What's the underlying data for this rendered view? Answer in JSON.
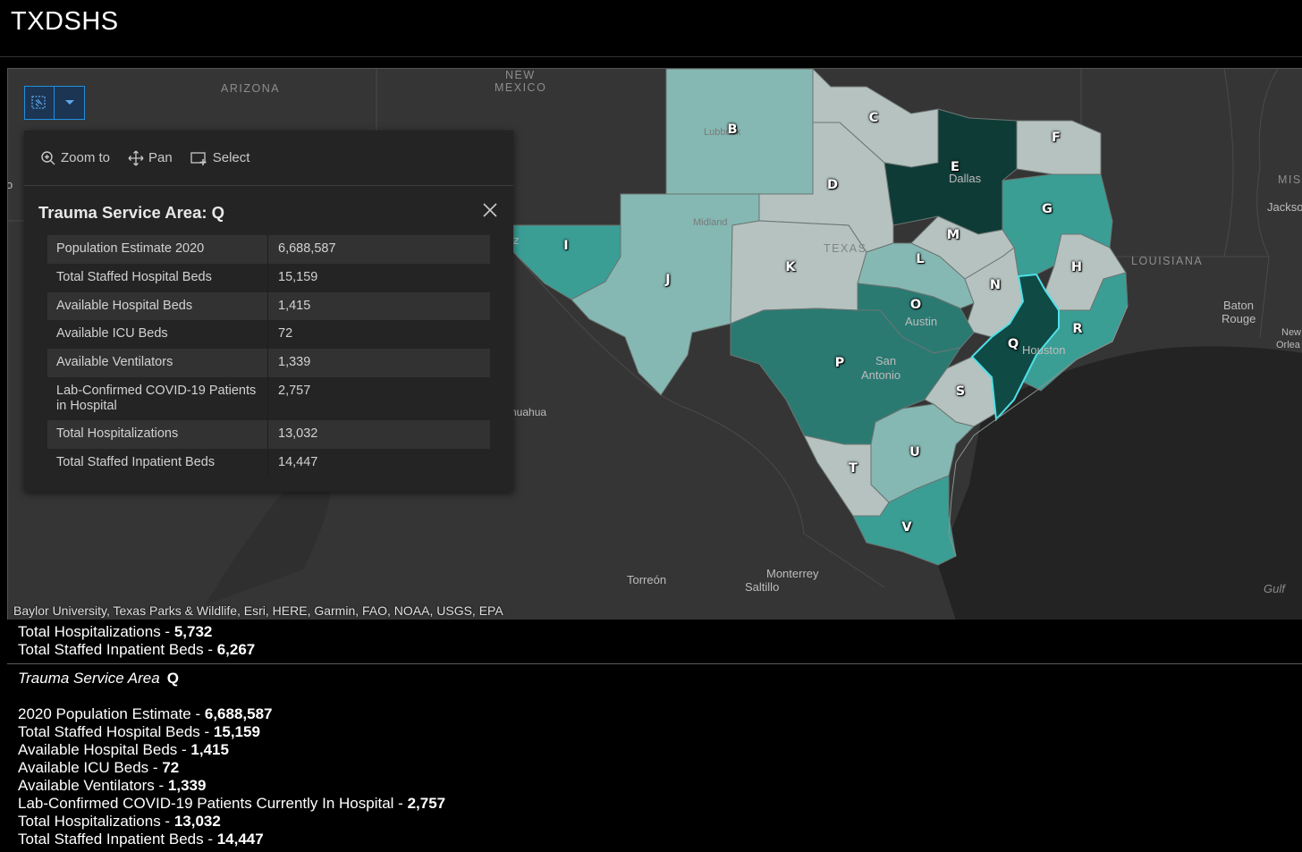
{
  "app": {
    "title": "TXDSHS"
  },
  "map": {
    "region_labels": {
      "arizona": "ARIZONA",
      "new_mexico_1": "NEW",
      "new_mexico_2": "MEXICO",
      "louisiana": "LOUISIANA",
      "texas": "TEXAS",
      "miss": "MISS"
    },
    "cities": {
      "lubbock": "Lubbock",
      "midland": "Midland",
      "dallas": "Dallas",
      "austin": "Austin",
      "san_antonio_1": "San",
      "san_antonio_2": "Antonio",
      "houston": "Houston",
      "baton_rouge_1": "Baton",
      "baton_rouge_2": "Rouge",
      "jackson": "Jackso",
      "new_orleans_1": "New",
      "new_orleans_2": "Orlea",
      "chihuahua": "nuahua",
      "torreon": "Torreón",
      "monterrey": "Monterrey",
      "saltillo": "Saltillo",
      "gulf": "Gulf",
      "edge_o": "o",
      "edge_z": "z"
    },
    "tsa_letters": [
      "B",
      "C",
      "D",
      "E",
      "F",
      "G",
      "H",
      "I",
      "J",
      "K",
      "L",
      "M",
      "N",
      "O",
      "P",
      "Q",
      "R",
      "S",
      "T",
      "U",
      "V"
    ],
    "colors": {
      "lightest": "#b5c2bf",
      "light": "#85b8b3",
      "medium": "#3a9e95",
      "dark": "#2a7a72",
      "darkest": "#0f3b36",
      "selected_outline": "#4fe0e8"
    },
    "attribution": "Baylor University, Texas Parks & Wildlife, Esri, HERE, Garmin, FAO, NOAA, USGS, EPA"
  },
  "toolbar": {
    "select_tool_icon": "select-tool-icon",
    "dropdown_icon": "chevron-down-icon"
  },
  "popup": {
    "actions": [
      {
        "label": "Zoom to",
        "icon": "zoom-in-icon"
      },
      {
        "label": "Pan",
        "icon": "pan-icon"
      },
      {
        "label": "Select",
        "icon": "select-icon"
      }
    ],
    "title": "Trauma Service Area: Q",
    "rows": [
      {
        "key": "Population Estimate 2020",
        "value": "6,688,587"
      },
      {
        "key": "Total Staffed Hospital Beds",
        "value": "15,159"
      },
      {
        "key": "Available Hospital Beds",
        "value": "1,415"
      },
      {
        "key": "Available ICU Beds",
        "value": "72"
      },
      {
        "key": "Available Ventilators",
        "value": "1,339"
      },
      {
        "key": "Lab-Confirmed COVID-19 Patients in Hospital",
        "value": "2,757"
      },
      {
        "key": "Total Hospitalizations",
        "value": "13,032"
      },
      {
        "key": "Total Staffed Inpatient Beds",
        "value": "14,447"
      }
    ]
  },
  "text_panel": {
    "prev": [
      {
        "label": "Total Hospitalizations - ",
        "value": "5,732"
      },
      {
        "label": "Total Staffed Inpatient Beds - ",
        "value": "6,267"
      }
    ],
    "tsa_heading": "Trauma Service Area",
    "tsa_letter": "Q",
    "lines": [
      {
        "label": "2020 Population Estimate - ",
        "value": "6,688,587"
      },
      {
        "label": "Total Staffed Hospital Beds - ",
        "value": "15,159"
      },
      {
        "label": "Available Hospital Beds - ",
        "value": "1,415"
      },
      {
        "label": "Available ICU Beds - ",
        "value": "72"
      },
      {
        "label": "Available Ventilators - ",
        "value": "1,339"
      },
      {
        "label": "Lab-Confirmed COVID-19 Patients Currently In Hospital - ",
        "value": "2,757"
      },
      {
        "label": "Total Hospitalizations - ",
        "value": "13,032"
      },
      {
        "label": "Total Staffed Inpatient Beds - ",
        "value": "14,447"
      }
    ]
  }
}
